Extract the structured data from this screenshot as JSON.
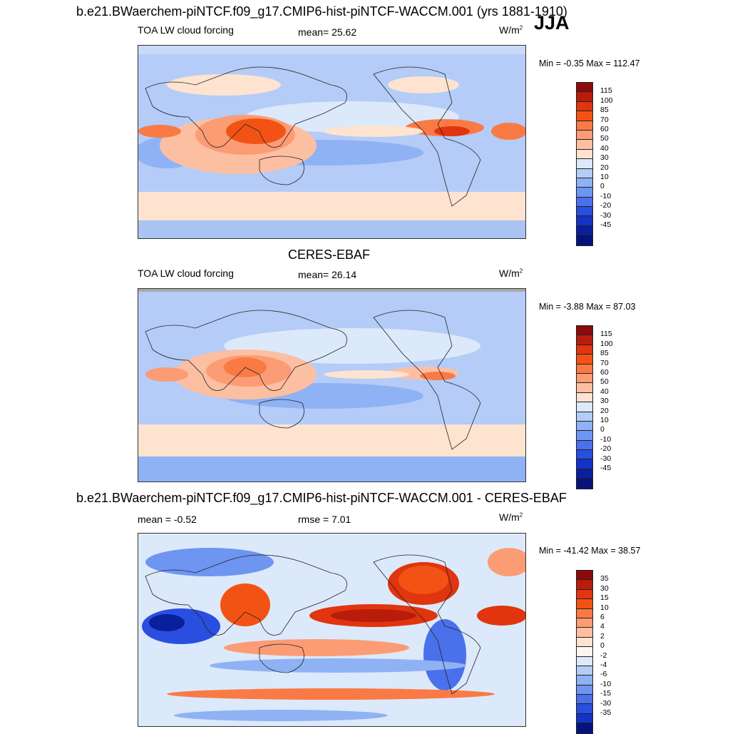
{
  "season": "JJA",
  "panels": [
    {
      "id": "model",
      "title": "b.e21.BWaerchem-piNTCF.f09_g17.CMIP6-hist-piNTCF-WACCM.001 (yrs 1881-1910)",
      "left_label": "TOA LW cloud forcing",
      "center_label": "mean=  25.62",
      "units": "W/m",
      "units_sup": "2",
      "minmax": "Min =  -0.35 Max = 112.47",
      "colorbar": {
        "colors": [
          "#8c0a0a",
          "#b81d0c",
          "#e0350e",
          "#f25314",
          "#fa7a45",
          "#fb9c74",
          "#fdbfa2",
          "#fde3d0",
          "#dce9fa",
          "#b4cdf6",
          "#8fb2f5",
          "#6d95f1",
          "#4a70eb",
          "#2a4ee0",
          "#1433c6",
          "#0a1f9c",
          "#05137a"
        ],
        "labels": [
          "115",
          "100",
          "85",
          "70",
          "60",
          "50",
          "40",
          "30",
          "20",
          "10",
          "0",
          "-10",
          "-20",
          "-30",
          "-45"
        ]
      }
    },
    {
      "id": "obs",
      "title": "CERES-EBAF",
      "left_label": "TOA LW cloud forcing",
      "center_label": "mean=  26.14",
      "units": "W/m",
      "units_sup": "2",
      "minmax": "Min =  -3.88 Max =  87.03",
      "colorbar": {
        "colors": [
          "#8c0a0a",
          "#b81d0c",
          "#e0350e",
          "#f25314",
          "#fa7a45",
          "#fb9c74",
          "#fdbfa2",
          "#fde3d0",
          "#dce9fa",
          "#b4cdf6",
          "#8fb2f5",
          "#6d95f1",
          "#4a70eb",
          "#2a4ee0",
          "#1433c6",
          "#0a1f9c",
          "#05137a"
        ],
        "labels": [
          "115",
          "100",
          "85",
          "70",
          "60",
          "50",
          "40",
          "30",
          "20",
          "10",
          "0",
          "-10",
          "-20",
          "-30",
          "-45"
        ]
      }
    },
    {
      "id": "diff",
      "title": "b.e21.BWaerchem-piNTCF.f09_g17.CMIP6-hist-piNTCF-WACCM.001 - CERES-EBAF",
      "left_label": "mean =  -0.52",
      "center_label": "rmse =   7.01",
      "units": "W/m",
      "units_sup": "2",
      "minmax": "Min = -41.42 Max =  38.57",
      "colorbar": {
        "colors": [
          "#8c0a0a",
          "#b81d0c",
          "#e0350e",
          "#f25314",
          "#fa7a45",
          "#fb9c74",
          "#fdbfa2",
          "#fde3d0",
          "#fdf5ee",
          "#dce9fa",
          "#b4cdf6",
          "#8fb2f5",
          "#6d95f1",
          "#4a70eb",
          "#2a4ee0",
          "#1433c6",
          "#05137a"
        ],
        "labels": [
          "35",
          "30",
          "15",
          "10",
          "6",
          "4",
          "2",
          "0",
          "-2",
          "-4",
          "-6",
          "-10",
          "-15",
          "-30",
          "-35"
        ]
      }
    }
  ]
}
